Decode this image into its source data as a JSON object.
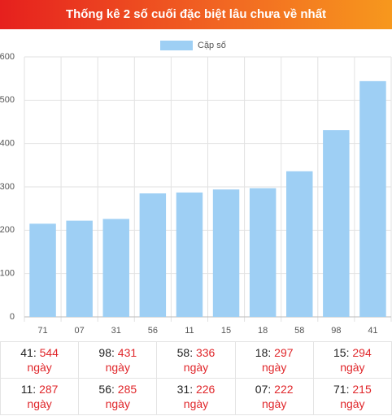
{
  "header": {
    "title": "Thống kê 2 số cuối đặc biệt lâu chưa về nhất"
  },
  "chart_data": {
    "type": "bar",
    "legend": "Cặp số",
    "color": "#9ecff4",
    "categories": [
      "71",
      "07",
      "31",
      "56",
      "11",
      "15",
      "18",
      "58",
      "98",
      "41"
    ],
    "series": [
      {
        "name": "Cặp số",
        "color": "#9ecff4",
        "values": [
          215,
          222,
          226,
          285,
          287,
          294,
          297,
          336,
          431,
          544
        ]
      }
    ],
    "ylim": [
      0,
      600
    ],
    "yticks": [
      0,
      100,
      200,
      300,
      400,
      500,
      600
    ],
    "grid": true,
    "legend_position": "top"
  },
  "table": {
    "rows": [
      [
        {
          "key": "41",
          "value": 544,
          "unit": "ngày"
        },
        {
          "key": "98",
          "value": 431,
          "unit": "ngày"
        },
        {
          "key": "58",
          "value": 336,
          "unit": "ngày"
        },
        {
          "key": "18",
          "value": 297,
          "unit": "ngày"
        },
        {
          "key": "15",
          "value": 294,
          "unit": "ngày"
        }
      ],
      [
        {
          "key": "11",
          "value": 287,
          "unit": "ngày"
        },
        {
          "key": "56",
          "value": 285,
          "unit": "ngày"
        },
        {
          "key": "31",
          "value": 226,
          "unit": "ngày"
        },
        {
          "key": "07",
          "value": 222,
          "unit": "ngày"
        },
        {
          "key": "71",
          "value": 215,
          "unit": "ngày"
        }
      ]
    ]
  }
}
